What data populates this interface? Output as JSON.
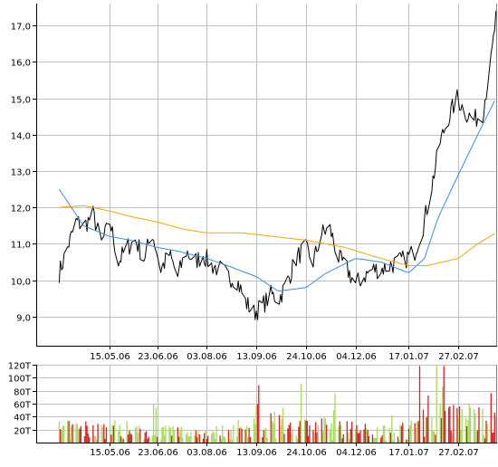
{
  "chart_data": [
    {
      "type": "line",
      "title": "",
      "xlabel": "",
      "ylabel": "",
      "x_ticks": [
        "15.05.06",
        "23.06.06",
        "03.08.06",
        "13.09.06",
        "24.10.06",
        "04.12.06",
        "17.01.07",
        "27.02.07"
      ],
      "y_ticks": [
        "9,0",
        "10,0",
        "11,0",
        "12,0",
        "13,0",
        "14,0",
        "15,0",
        "16,0",
        "17,0"
      ],
      "ylim": [
        8.2,
        17.6
      ],
      "grid": true,
      "colors": {
        "price": "#000000",
        "ma_short": "#3a8fd8",
        "ma_long": "#f0a800",
        "grid": "#c0c0c0"
      },
      "series": [
        {
          "role": "price",
          "x": [
            "03.04.06",
            "10.04.06",
            "17.04.06",
            "24.04.06",
            "01.05.06",
            "08.05.06",
            "15.05.06",
            "22.05.06",
            "29.05.06",
            "05.06.06",
            "12.06.06",
            "19.06.06",
            "26.06.06",
            "03.07.06",
            "10.07.06",
            "17.07.06",
            "24.07.06",
            "31.07.06",
            "07.08.06",
            "14.08.06",
            "21.08.06",
            "28.08.06",
            "04.09.06",
            "11.09.06",
            "18.09.06",
            "25.09.06",
            "02.10.06",
            "09.10.06",
            "16.10.06",
            "23.10.06",
            "30.10.06",
            "06.11.06",
            "13.11.06",
            "20.11.06",
            "27.11.06",
            "04.12.06",
            "11.12.06",
            "18.12.06",
            "25.12.06",
            "01.01.07",
            "08.01.07",
            "15.01.07",
            "22.01.07",
            "29.01.07",
            "05.02.07",
            "12.02.07",
            "19.02.07",
            "26.02.07",
            "05.03.07",
            "12.03.07",
            "19.03.07",
            "26.03.07",
            "30.03.07"
          ],
          "values": [
            10.2,
            10.9,
            11.6,
            11.5,
            11.8,
            11.0,
            11.6,
            10.5,
            10.9,
            11.1,
            10.6,
            11.3,
            10.3,
            10.7,
            10.1,
            10.8,
            10.5,
            10.7,
            10.4,
            10.3,
            10.1,
            10.0,
            9.4,
            9.1,
            9.3,
            9.6,
            9.5,
            10.0,
            10.6,
            10.9,
            10.5,
            11.3,
            11.4,
            10.6,
            10.3,
            9.9,
            10.1,
            10.3,
            10.3,
            10.4,
            10.5,
            10.6,
            10.8,
            11.5,
            12.6,
            13.8,
            14.5,
            15.0,
            14.6,
            14.4,
            14.6,
            16.0,
            17.2
          ]
        },
        {
          "role": "ma_short",
          "x": [
            "03.04.06",
            "13.04.06",
            "23.04.06",
            "15.05.06",
            "01.06.06",
            "23.06.06",
            "10.07.06",
            "03.08.06",
            "20.08.06",
            "13.09.06",
            "01.10.06",
            "24.10.06",
            "10.11.06",
            "04.12.06",
            "25.12.06",
            "17.01.07",
            "30.01.07",
            "10.02.07",
            "27.02.07",
            "15.03.07",
            "30.03.07"
          ],
          "values": [
            12.5,
            12.0,
            11.5,
            11.2,
            11.1,
            10.9,
            10.8,
            10.6,
            10.4,
            10.1,
            9.7,
            9.8,
            10.2,
            10.6,
            10.5,
            10.2,
            10.6,
            11.7,
            12.9,
            14.0,
            15.0
          ]
        },
        {
          "role": "ma_long",
          "x": [
            "03.04.06",
            "23.04.06",
            "15.05.06",
            "01.06.06",
            "23.06.06",
            "15.07.06",
            "03.08.06",
            "01.09.06",
            "24.10.06",
            "25.11.06",
            "25.12.06",
            "17.01.07",
            "01.02.07",
            "27.02.07",
            "15.03.07",
            "30.03.07"
          ],
          "values": [
            12.0,
            12.05,
            11.9,
            11.75,
            11.6,
            11.4,
            11.3,
            11.3,
            11.1,
            10.9,
            10.6,
            10.4,
            10.4,
            10.6,
            11.0,
            11.3
          ]
        }
      ]
    },
    {
      "type": "bar",
      "title": "",
      "x_ticks": [
        "15.05.06",
        "23.06.06",
        "03.08.06",
        "13.09.06",
        "24.10.06",
        "04.12.06",
        "17.01.07",
        "27.02.07"
      ],
      "y_ticks": [
        "20T",
        "40T",
        "60T",
        "80T",
        "100T",
        "120T"
      ],
      "ylim": [
        0,
        120
      ],
      "grid": true,
      "colors": {
        "up": "#a8d860",
        "down": "#d82020"
      },
      "seed": 7,
      "volume_profile": [
        [
          "03.04.06",
          25
        ],
        [
          "15.05.06",
          28
        ],
        [
          "23.06.06",
          22
        ],
        [
          "03.08.06",
          20
        ],
        [
          "01.09.06",
          24
        ],
        [
          "13.09.06",
          45
        ],
        [
          "24.10.06",
          35
        ],
        [
          "04.12.06",
          22
        ],
        [
          "17.01.07",
          25
        ],
        [
          "05.02.07",
          70
        ],
        [
          "27.02.07",
          60
        ],
        [
          "30.03.07",
          35
        ]
      ]
    }
  ]
}
